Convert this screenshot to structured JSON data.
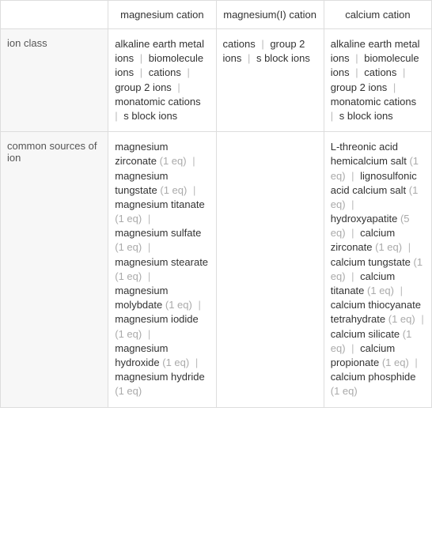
{
  "columns": [
    {
      "header": ""
    },
    {
      "header": "magnesium cation"
    },
    {
      "header": "magnesium(I) cation"
    },
    {
      "header": "calcium cation"
    }
  ],
  "rows": [
    {
      "label": "ion class",
      "cells": [
        {
          "items": [
            {
              "text": "alkaline earth metal ions"
            },
            {
              "text": "biomolecule ions"
            },
            {
              "text": "cations"
            },
            {
              "text": "group 2 ions"
            },
            {
              "text": "monatomic cations"
            },
            {
              "text": "s block ions"
            }
          ]
        },
        {
          "items": [
            {
              "text": "cations"
            },
            {
              "text": "group 2 ions"
            },
            {
              "text": "s block ions"
            }
          ]
        },
        {
          "items": [
            {
              "text": "alkaline earth metal ions"
            },
            {
              "text": "biomolecule ions"
            },
            {
              "text": "cations"
            },
            {
              "text": "group 2 ions"
            },
            {
              "text": "monatomic cations"
            },
            {
              "text": "s block ions"
            }
          ]
        }
      ]
    },
    {
      "label": "common sources of ion",
      "cells": [
        {
          "items": [
            {
              "text": "magnesium zirconate",
              "eq": "(1 eq)"
            },
            {
              "text": "magnesium tungstate",
              "eq": "(1 eq)"
            },
            {
              "text": "magnesium titanate",
              "eq": "(1 eq)"
            },
            {
              "text": "magnesium sulfate",
              "eq": "(1 eq)"
            },
            {
              "text": "magnesium stearate",
              "eq": "(1 eq)"
            },
            {
              "text": "magnesium molybdate",
              "eq": "(1 eq)"
            },
            {
              "text": "magnesium iodide",
              "eq": "(1 eq)"
            },
            {
              "text": "magnesium hydroxide",
              "eq": "(1 eq)"
            },
            {
              "text": "magnesium hydride",
              "eq": "(1 eq)"
            }
          ]
        },
        {
          "items": []
        },
        {
          "items": [
            {
              "text": "L-threonic acid hemicalcium salt",
              "eq": "(1 eq)"
            },
            {
              "text": "lignosulfonic acid calcium salt",
              "eq": "(1 eq)"
            },
            {
              "text": "hydroxyapatite",
              "eq": "(5 eq)"
            },
            {
              "text": "calcium zirconate",
              "eq": "(1 eq)"
            },
            {
              "text": "calcium tungstate",
              "eq": "(1 eq)"
            },
            {
              "text": "calcium titanate",
              "eq": "(1 eq)"
            },
            {
              "text": "calcium thiocyanate tetrahydrate",
              "eq": "(1 eq)"
            },
            {
              "text": "calcium silicate",
              "eq": "(1 eq)"
            },
            {
              "text": "calcium propionate",
              "eq": "(1 eq)"
            },
            {
              "text": "calcium phosphide",
              "eq": "(1 eq)"
            }
          ]
        }
      ]
    }
  ],
  "separator": "|"
}
